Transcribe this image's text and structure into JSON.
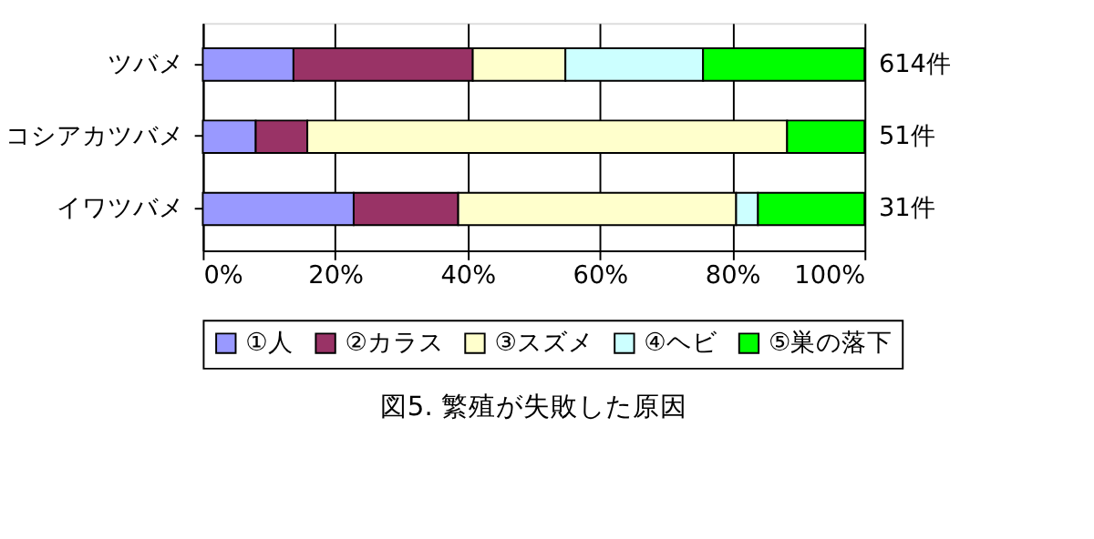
{
  "chart_data": {
    "type": "bar",
    "orientation": "horizontal",
    "stacked": true,
    "title": "図5. 繁殖が失敗した原因",
    "categories": [
      "ツバメ",
      "コシアカツバメ",
      "イワツバメ"
    ],
    "series": [
      {
        "name": "①人",
        "color": "#9999ff",
        "values": [
          13.7,
          8.0,
          22.8
        ]
      },
      {
        "name": "②カラス",
        "color": "#993366",
        "values": [
          27.1,
          7.8,
          15.8
        ]
      },
      {
        "name": "③スズメ",
        "color": "#ffffcc",
        "values": [
          14.0,
          72.5,
          42.0
        ]
      },
      {
        "name": "④ヘビ",
        "color": "#ccffff",
        "values": [
          20.8,
          null,
          3.3
        ]
      },
      {
        "name": "⑤巣の落下",
        "color": "#00ff00",
        "values": [
          24.4,
          11.7,
          16.1
        ]
      }
    ],
    "annotations": [
      "614件",
      "51件",
      "31件"
    ],
    "xlim": [
      0,
      100
    ],
    "xticks": [
      {
        "value": 0,
        "label": "0%"
      },
      {
        "value": 20,
        "label": "20%"
      },
      {
        "value": 40,
        "label": "40%"
      },
      {
        "value": 60,
        "label": "60%"
      },
      {
        "value": 80,
        "label": "80%"
      },
      {
        "value": 100,
        "label": "100%"
      }
    ],
    "grid": "x",
    "legend": "bottom"
  }
}
